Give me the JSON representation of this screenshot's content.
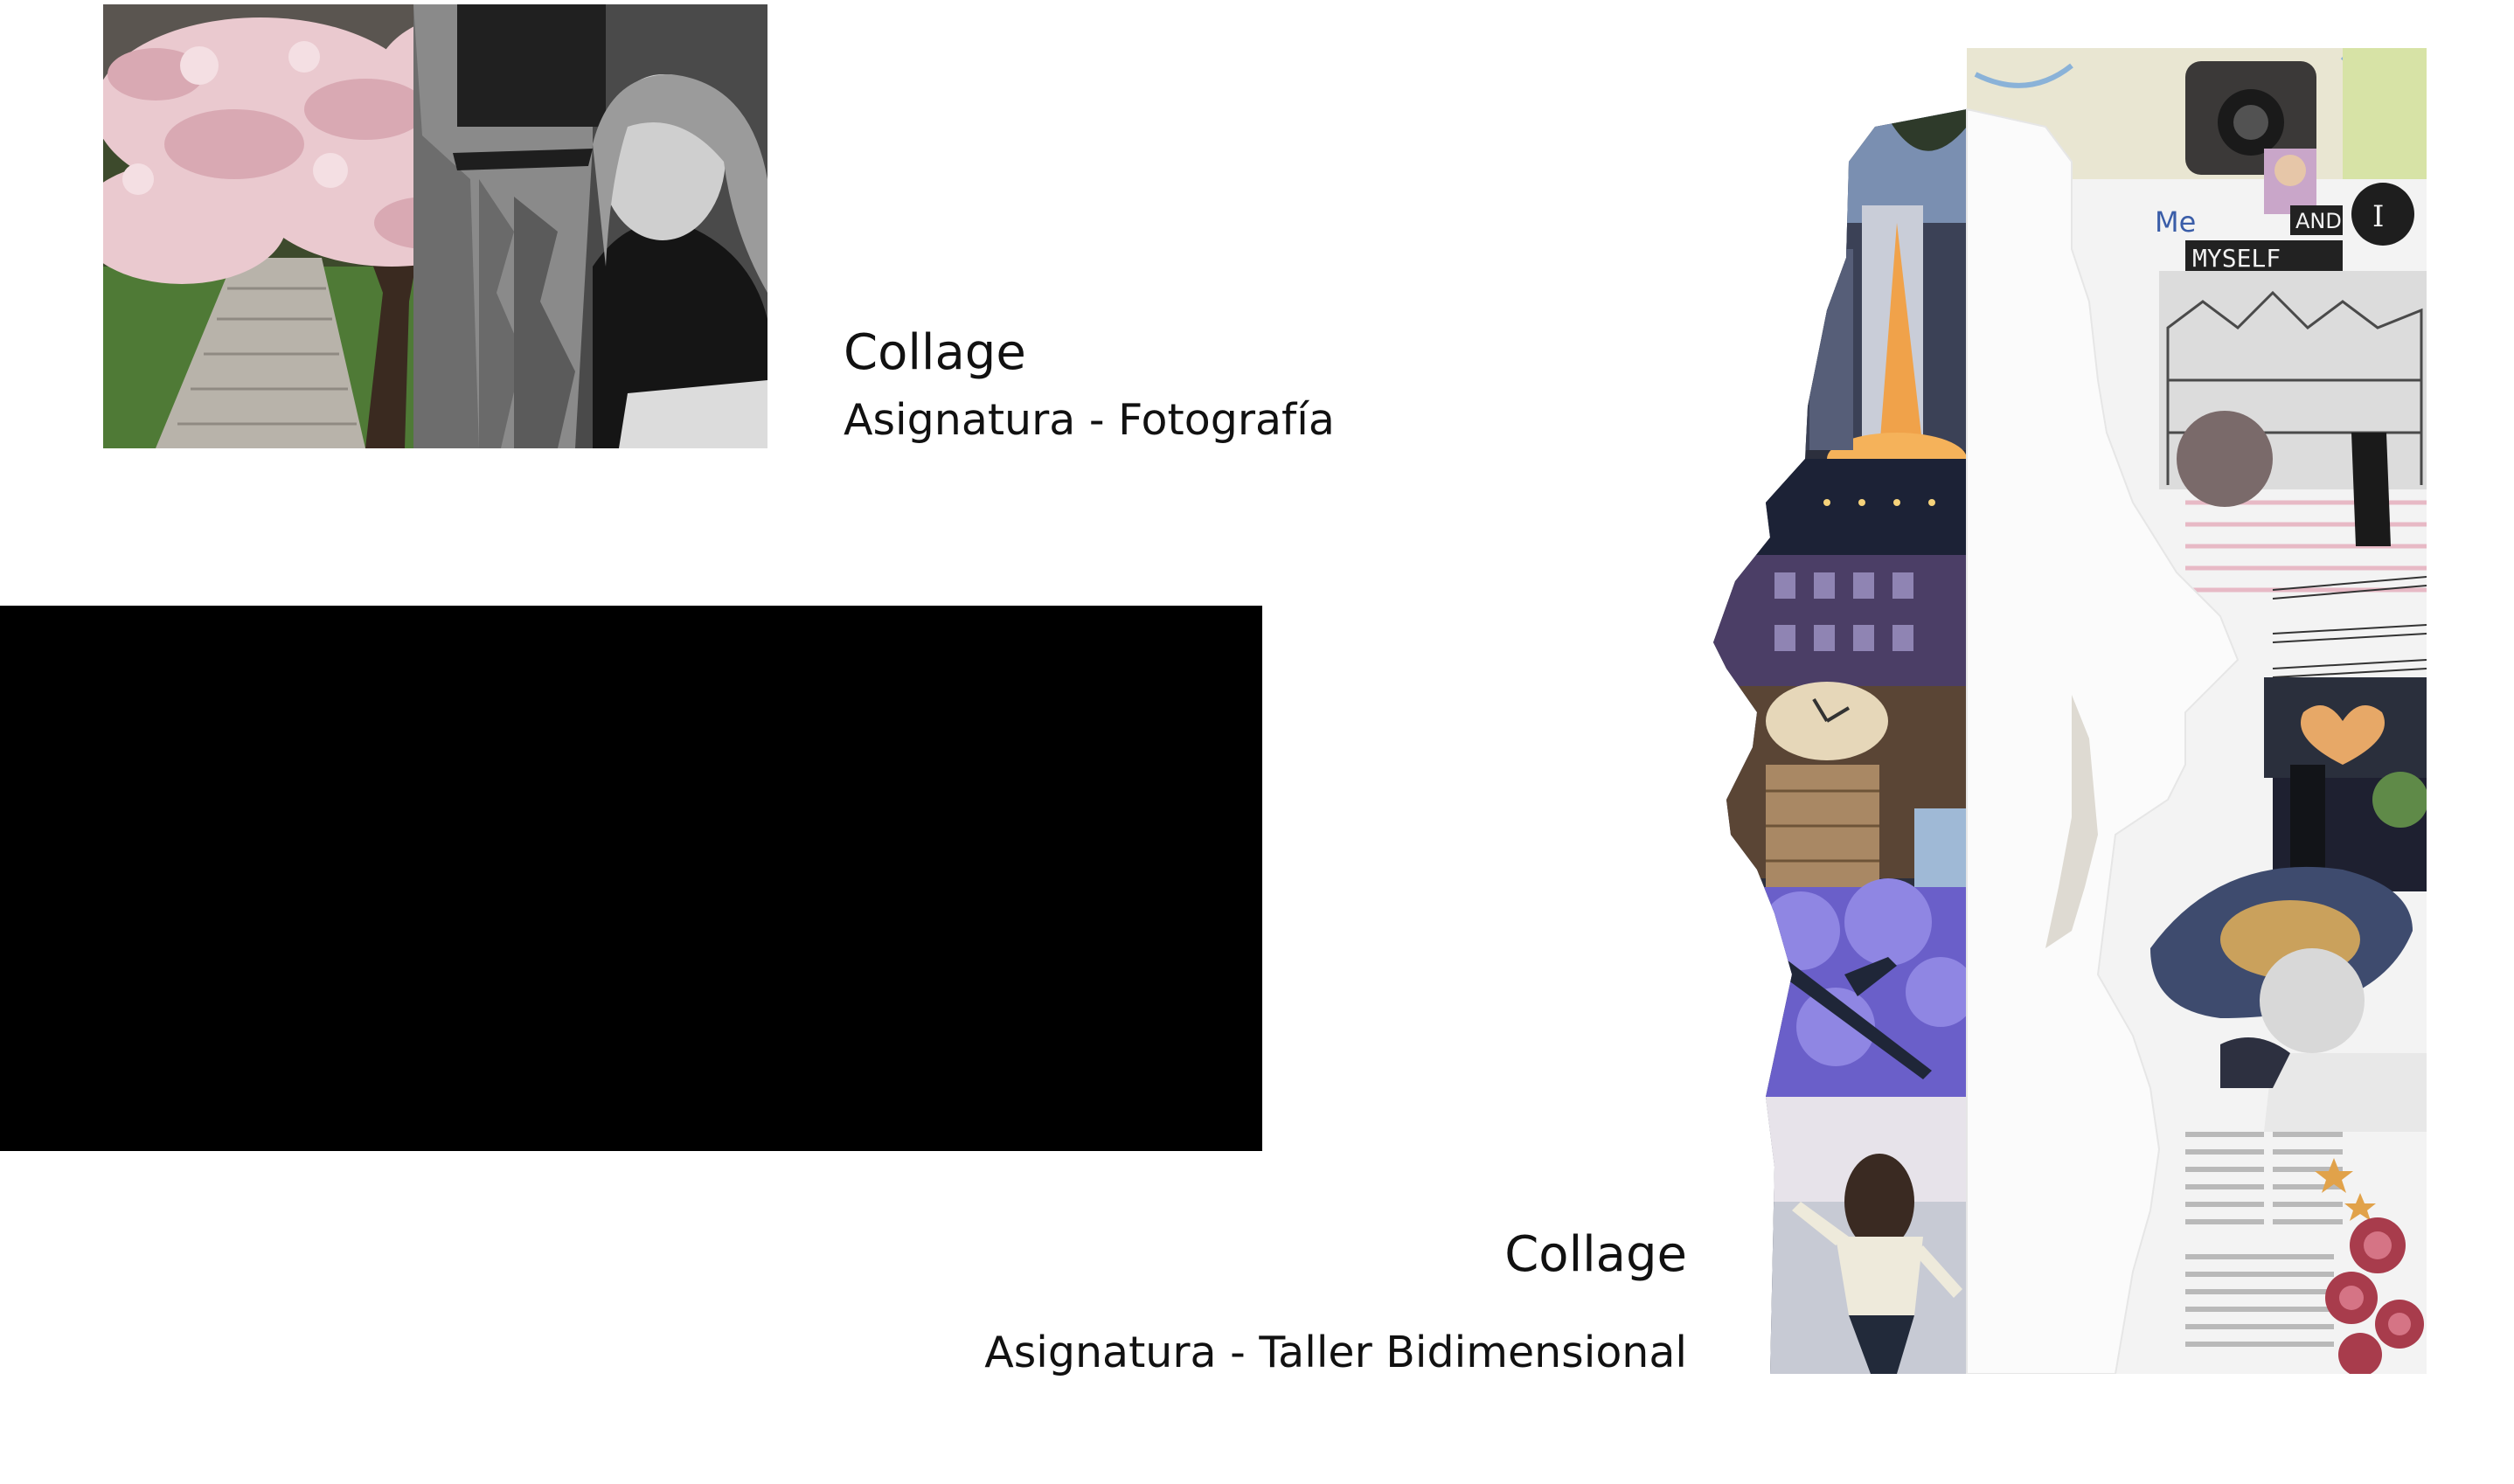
{
  "works": [
    {
      "title": "Collage",
      "subtitle": "Asignatura - Fotografía"
    },
    {
      "title": "Collage",
      "subtitle": "Asignatura - Taller Bidimensional"
    }
  ],
  "collage_words": {
    "me": "Me",
    "myself": "MYSELF",
    "and": "AND",
    "i": "I"
  }
}
